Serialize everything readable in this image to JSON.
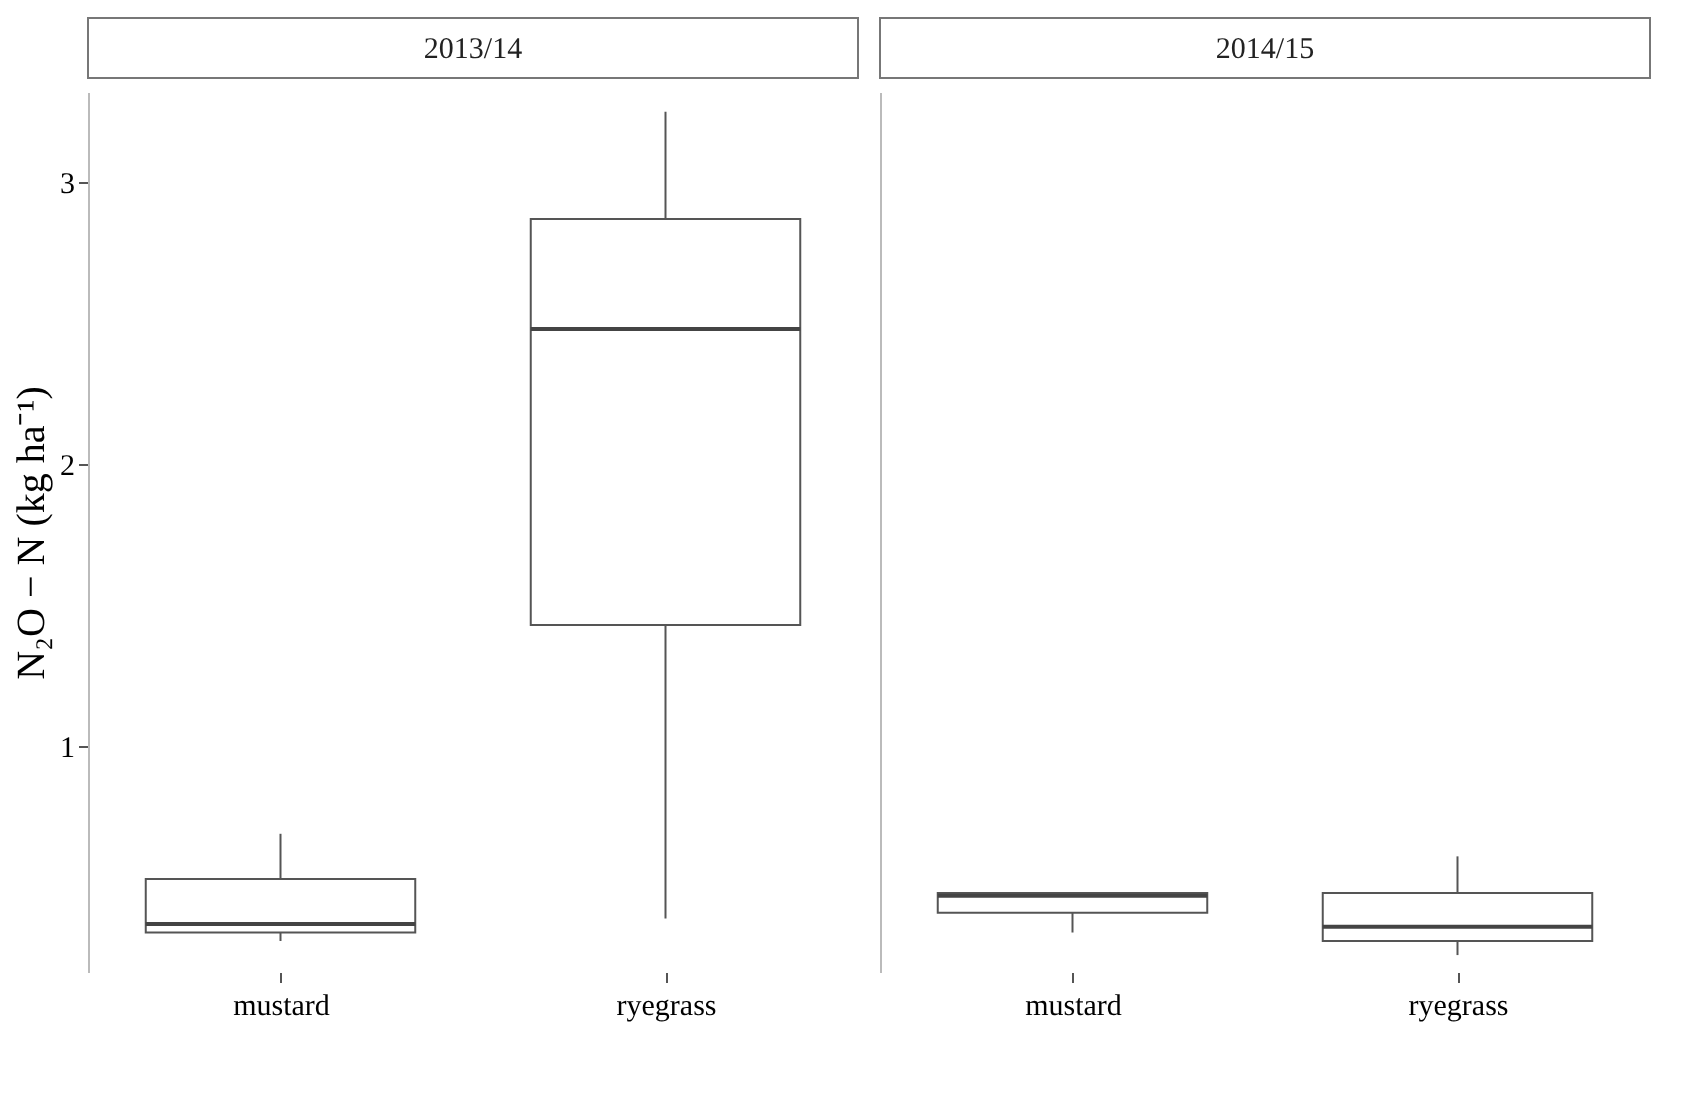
{
  "chart_data": [
    {
      "type": "box",
      "title": "2013/14",
      "ylabel": "N₂O − N (kg ha⁻¹)",
      "categories": [
        "mustard",
        "ryegrass"
      ],
      "ylim": [
        0.2,
        3.32
      ],
      "yticks": [
        1,
        2,
        3
      ],
      "boxes": [
        {
          "low": 0.31,
          "q1": 0.34,
          "median": 0.37,
          "q3": 0.53,
          "high": 0.69
        },
        {
          "low": 0.39,
          "q1": 1.43,
          "median": 2.48,
          "q3": 2.87,
          "high": 3.25
        }
      ]
    },
    {
      "type": "box",
      "title": "2014/15",
      "categories": [
        "mustard",
        "ryegrass"
      ],
      "ylim": [
        0.2,
        3.32
      ],
      "yticks": [
        1,
        2,
        3
      ],
      "tick_labels": "x",
      "boxes": [
        {
          "low": 0.34,
          "q1": 0.41,
          "median": 0.47,
          "q3": 0.48,
          "high": 0.48
        },
        {
          "low": 0.26,
          "q1": 0.31,
          "median": 0.36,
          "q3": 0.48,
          "high": 0.61
        }
      ]
    }
  ]
}
